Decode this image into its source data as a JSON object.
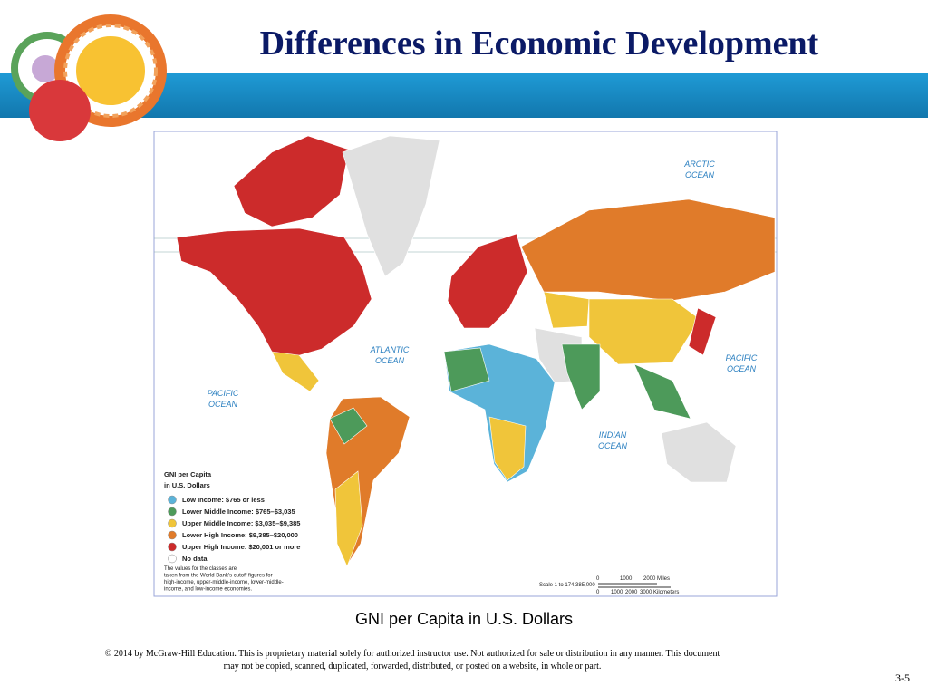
{
  "header": {
    "title": "Differences in Economic Development"
  },
  "map": {
    "oceans": [
      {
        "lines": [
          "ARCTIC",
          "OCEAN"
        ]
      },
      {
        "lines": [
          "ATLANTIC",
          "OCEAN"
        ]
      },
      {
        "lines": [
          "PACIFIC",
          "OCEAN"
        ]
      },
      {
        "lines": [
          "PACIFIC",
          "OCEAN"
        ]
      },
      {
        "lines": [
          "INDIAN",
          "OCEAN"
        ]
      }
    ],
    "legend": {
      "title_lines": [
        "GNI per Capita",
        "in U.S. Dollars"
      ],
      "items": [
        {
          "label": "Low Income: $765 or less",
          "color": "#5bb3d9"
        },
        {
          "label": "Lower Middle Income: $765–$3,035",
          "color": "#4d9a5a"
        },
        {
          "label": "Upper Middle Income: $3,035–$9,385",
          "color": "#f0c53a"
        },
        {
          "label": "Lower High Income: $9,385–$20,000",
          "color": "#e07b2a"
        },
        {
          "label": "Upper High Income: $20,001 or more",
          "color": "#cc2b2b"
        },
        {
          "label": "No data",
          "color": "#ffffff"
        }
      ],
      "note_lines": [
        "The values for the classes are",
        "taken from the World Bank's cutoff figures for",
        "high-income, upper-middle-income, lower-middle-",
        "income, and low-income economies."
      ]
    },
    "scale": {
      "ratio": "Scale 1 to 174,385,000",
      "miles": [
        "0",
        "1000",
        "2000 Miles"
      ],
      "kilometers": [
        "0",
        "1000",
        "2000",
        "3000 Kilometers"
      ]
    }
  },
  "caption": "GNI per Capita in U.S. Dollars",
  "footer": {
    "lines": [
      "© 2014 by McGraw-Hill Education.  This is proprietary material solely for authorized instructor use. Not authorized for sale or distribution in any manner.  This document",
      "may not be copied, scanned, duplicated, forwarded, distributed, or posted on a website, in whole or part."
    ]
  },
  "page_number": "3-5"
}
